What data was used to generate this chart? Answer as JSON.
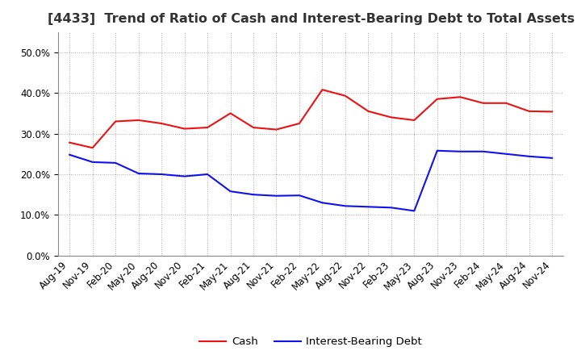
{
  "title": "[4433]  Trend of Ratio of Cash and Interest-Bearing Debt to Total Assets",
  "title_fontsize": 11.5,
  "cash_data": {
    "labels": [
      "Aug-19",
      "Nov-19",
      "Feb-20",
      "May-20",
      "Aug-20",
      "Nov-20",
      "Feb-21",
      "May-21",
      "Aug-21",
      "Nov-21",
      "Feb-22",
      "May-22",
      "Aug-22",
      "Nov-22",
      "Feb-23",
      "May-23",
      "Aug-23",
      "Nov-23",
      "Feb-24",
      "May-24",
      "Aug-24",
      "Nov-24"
    ],
    "values": [
      0.278,
      0.265,
      0.33,
      0.333,
      0.325,
      0.312,
      0.315,
      0.35,
      0.315,
      0.31,
      0.325,
      0.408,
      0.393,
      0.355,
      0.34,
      0.333,
      0.385,
      0.39,
      0.375,
      0.375,
      0.355,
      0.354
    ]
  },
  "debt_data": {
    "labels": [
      "Aug-19",
      "Nov-19",
      "Feb-20",
      "May-20",
      "Aug-20",
      "Nov-20",
      "Feb-21",
      "May-21",
      "Aug-21",
      "Nov-21",
      "Feb-22",
      "May-22",
      "Aug-22",
      "Nov-22",
      "Feb-23",
      "May-23",
      "Aug-23",
      "Nov-23",
      "Feb-24",
      "May-24",
      "Aug-24",
      "Nov-24"
    ],
    "values": [
      0.248,
      0.23,
      0.228,
      0.202,
      0.2,
      0.195,
      0.2,
      0.158,
      0.15,
      0.147,
      0.148,
      0.13,
      0.122,
      0.12,
      0.118,
      0.11,
      0.258,
      0.256,
      0.256,
      0.25,
      0.244,
      0.24
    ]
  },
  "cash_color": "#EE1111",
  "debt_color": "#1111EE",
  "background_color": "#FFFFFF",
  "plot_bg_color": "#FFFFFF",
  "ylim": [
    0.0,
    0.55
  ],
  "yticks": [
    0.0,
    0.1,
    0.2,
    0.3,
    0.4,
    0.5
  ],
  "grid_color": "#AAAAAA",
  "legend_labels": [
    "Cash",
    "Interest-Bearing Debt"
  ],
  "line_width": 1.5,
  "tick_fontsize": 8.5,
  "legend_fontsize": 9.5
}
